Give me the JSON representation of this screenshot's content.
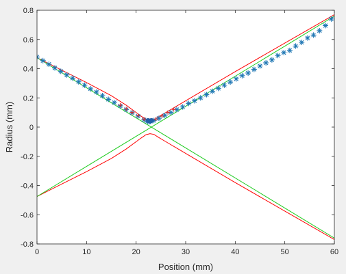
{
  "chart_data": {
    "type": "scatter",
    "title": "",
    "xlabel": "Position (mm)",
    "ylabel": "Radius (mm)",
    "xlim": [
      0,
      60
    ],
    "ylim": [
      -0.8,
      0.8
    ],
    "xticks": [
      0,
      10,
      20,
      30,
      40,
      50,
      60
    ],
    "yticks": [
      -0.8,
      -0.6,
      -0.4,
      -0.2,
      0,
      0.2,
      0.4,
      0.6,
      0.8
    ],
    "xtick_labels": [
      "0",
      "10",
      "20",
      "30",
      "40",
      "50",
      "60"
    ],
    "ytick_labels": [
      "-0.8",
      "-0.6",
      "-0.4",
      "-0.2",
      "0",
      "0.2",
      "0.4",
      "0.6",
      "0.8"
    ],
    "grid": false,
    "background_color": "#ffffff",
    "figure_color": "#f0f0f0",
    "series": [
      {
        "marker": "asterisk",
        "color": "#1f77b4",
        "x": [
          0,
          1.2,
          2.4,
          3.6,
          4.8,
          6.0,
          7.2,
          8.4,
          9.6,
          10.8,
          12.0,
          13.2,
          14.4,
          15.6,
          16.8,
          18.0,
          19.2,
          20.4,
          21.6,
          22.3,
          22.6,
          22.9,
          23.6,
          24.6,
          25.8,
          27.0,
          28.2,
          29.4,
          30.6,
          31.8,
          33.0,
          34.2,
          35.4,
          36.6,
          37.8,
          39.0,
          40.2,
          41.4,
          42.6,
          43.8,
          45.0,
          46.2,
          47.4,
          48.6,
          49.8,
          51.0,
          52.2,
          53.4,
          54.6,
          55.8,
          57.0,
          58.2,
          59.4
        ],
        "y": [
          0.48,
          0.455,
          0.43,
          0.405,
          0.382,
          0.357,
          0.335,
          0.31,
          0.287,
          0.262,
          0.24,
          0.215,
          0.19,
          0.168,
          0.145,
          0.12,
          0.098,
          0.075,
          0.05,
          0.04,
          0.035,
          0.04,
          0.045,
          0.06,
          0.08,
          0.1,
          0.12,
          0.138,
          0.162,
          0.18,
          0.2,
          0.222,
          0.245,
          0.265,
          0.287,
          0.308,
          0.33,
          0.352,
          0.37,
          0.395,
          0.418,
          0.44,
          0.46,
          0.49,
          0.51,
          0.525,
          0.555,
          0.58,
          0.61,
          0.63,
          0.66,
          0.695,
          0.74
        ]
      },
      {
        "marker": "plus",
        "color": "#d62728",
        "x": [
          16.8,
          18.0,
          19.2,
          20.4,
          21.6,
          22.8,
          24.0,
          25.2,
          26.4,
          27.6
        ],
        "y": [
          0.15,
          0.125,
          0.1,
          0.078,
          0.055,
          0.045,
          0.055,
          0.075,
          0.1,
          0.12
        ]
      },
      {
        "marker": "dot",
        "color": "#1f5fa8",
        "x": [
          22.4,
          22.8,
          23.1
        ],
        "y": [
          0.045,
          0.04,
          0.045
        ]
      },
      {
        "line": "fit-upper",
        "color": "#ff0000",
        "x": [
          0,
          5,
          10,
          15,
          18,
          20,
          21,
          22,
          22.8,
          23.6,
          24.5,
          26,
          28,
          32,
          40,
          50,
          60
        ],
        "y": [
          0.475,
          0.39,
          0.305,
          0.215,
          0.15,
          0.1,
          0.075,
          0.052,
          0.045,
          0.05,
          0.07,
          0.1,
          0.14,
          0.22,
          0.38,
          0.575,
          0.77
        ]
      },
      {
        "line": "fit-lower",
        "color": "#ff0000",
        "x": [
          0,
          5,
          10,
          15,
          18,
          20,
          21,
          22,
          22.8,
          23.6,
          24.5,
          26,
          28,
          32,
          40,
          50,
          60
        ],
        "y": [
          -0.475,
          -0.39,
          -0.305,
          -0.215,
          -0.15,
          -0.1,
          -0.075,
          -0.052,
          -0.045,
          -0.05,
          -0.07,
          -0.1,
          -0.14,
          -0.22,
          -0.38,
          -0.575,
          -0.77
        ]
      },
      {
        "line": "asymptote-1",
        "color": "#22cc22",
        "x": [
          0,
          60
        ],
        "y": [
          -0.475,
          0.76
        ]
      },
      {
        "line": "asymptote-2",
        "color": "#22cc22",
        "x": [
          0,
          60
        ],
        "y": [
          0.475,
          -0.76
        ]
      }
    ]
  }
}
